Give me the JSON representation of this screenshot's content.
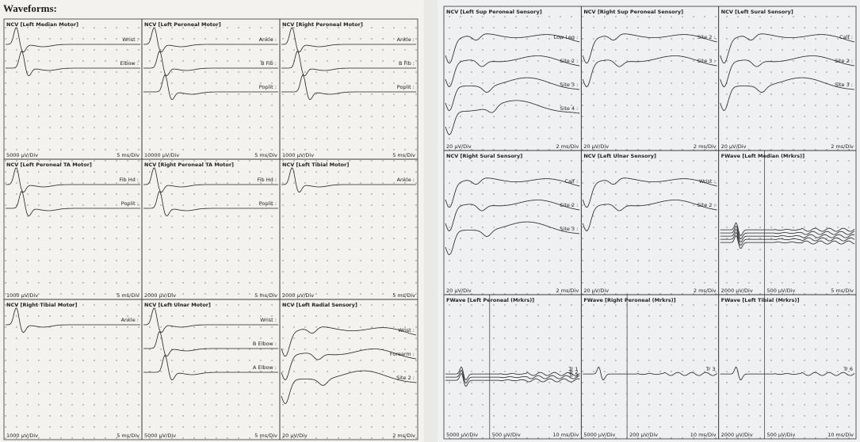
{
  "title": "Waveforms:",
  "sheets": [
    {
      "panels": [
        {
          "title": "NCV [Left Median Motor]",
          "traces": [
            "Wrist :",
            "Elbow :"
          ],
          "scales": [
            "5000 µV/Div",
            "5 ms/Div"
          ]
        },
        {
          "title": "NCV [Left Peroneal Motor]",
          "traces": [
            "Ankle :",
            "B Fib :",
            "Poplit :"
          ],
          "scales": [
            "10000 µV/Div",
            "5 ms/Div"
          ]
        },
        {
          "title": "NCV [Right Peroneal Motor]",
          "traces": [
            "Ankle :",
            "B Fib :",
            "Poplit :"
          ],
          "scales": [
            "1000 µV/Div",
            "5 ms/Div"
          ]
        },
        {
          "title": "NCV [Left Peroneal TA Motor]",
          "traces": [
            "Fib Hd :",
            "Poplit :"
          ],
          "scales": [
            "1000 µV/Div",
            "5 ms/Div"
          ]
        },
        {
          "title": "NCV [Right Peroneal TA Motor]",
          "traces": [
            "Fib Hd :",
            "Poplit :"
          ],
          "scales": [
            "2000 µV/Div",
            "5 ms/Div"
          ]
        },
        {
          "title": "NCV [Left Tibial Motor]",
          "traces": [
            "Ankle :"
          ],
          "scales": [
            "2000 µV/Div",
            "5 ms/Div"
          ]
        },
        {
          "title": "NCV [Right Tibial Motor]",
          "traces": [
            "Ankle :"
          ],
          "scales": [
            "1000 µV/Div",
            "5 ms/Div"
          ]
        },
        {
          "title": "NCV [Left Ulnar Motor]",
          "traces": [
            "Wrist :",
            "B Elbow :",
            "A Elbow :"
          ],
          "scales": [
            "5000 µV/Div",
            "5 ms/Div"
          ]
        },
        {
          "title": "NCV [Left Radial Sensory]",
          "traces": [
            "Wrist :",
            "Forearm :",
            "Site 2 :"
          ],
          "scales": [
            "20 µV/Div",
            "2 ms/Div"
          ]
        }
      ]
    },
    {
      "panels": [
        {
          "title": "NCV [Left Sup Peroneal Sensory]",
          "traces": [
            "Low Leg :",
            "Site 2 :",
            "Site 3 :",
            "Site 4 :"
          ],
          "scales": [
            "20 µV/Div",
            "2 ms/Div"
          ]
        },
        {
          "title": "NCV [Right Sup Peroneal Sensory]",
          "traces": [
            "Site 2 :",
            "Site 3 :"
          ],
          "scales": [
            "20 µV/Div",
            "2 ms/Div"
          ]
        },
        {
          "title": "NCV [Left Sural Sensory]",
          "traces": [
            "Calf :",
            "Site 2 :",
            "Site 3 :"
          ],
          "scales": [
            "20 µV/Div",
            "2 ms/Div"
          ]
        },
        {
          "title": "NCV [Right Sural Sensory]",
          "traces": [
            "Calf :",
            "Site 2 :",
            "Site 3 :"
          ],
          "scales": [
            "20 µV/Div",
            "2 ms/Div"
          ]
        },
        {
          "title": "NCV [Left Ulnar Sensory]",
          "traces": [
            "Wrist :",
            "Site 2 :"
          ],
          "scales": [
            "20 µV/Div",
            "2 ms/Div"
          ]
        },
        {
          "title": "FWave [Left Median (Mrkrs)]",
          "traces": [],
          "scales": [
            "2000 µV/Div",
            "500 µV/Div",
            "5 ms/Div"
          ]
        },
        {
          "title": "FWave [Left Peroneal (Mrkrs)]",
          "traces": [
            "Tr 1",
            "Tr 2",
            "Tr 3"
          ],
          "scales": [
            "5000 µV/Div",
            "500 µV/Div",
            "10 ms/Div"
          ]
        },
        {
          "title": "FWave [Right Peroneal (Mrkrs)]",
          "traces": [
            "Tr 3"
          ],
          "scales": [
            "5000 µV/Div",
            "200 µV/Div",
            "10 ms/Div"
          ]
        },
        {
          "title": "FWave [Left Tibial (Mrkrs)]",
          "traces": [
            "Tr 6"
          ],
          "scales": [
            "2000 µV/Div",
            "500 µV/Div",
            "10 ms/Div"
          ]
        }
      ]
    }
  ]
}
